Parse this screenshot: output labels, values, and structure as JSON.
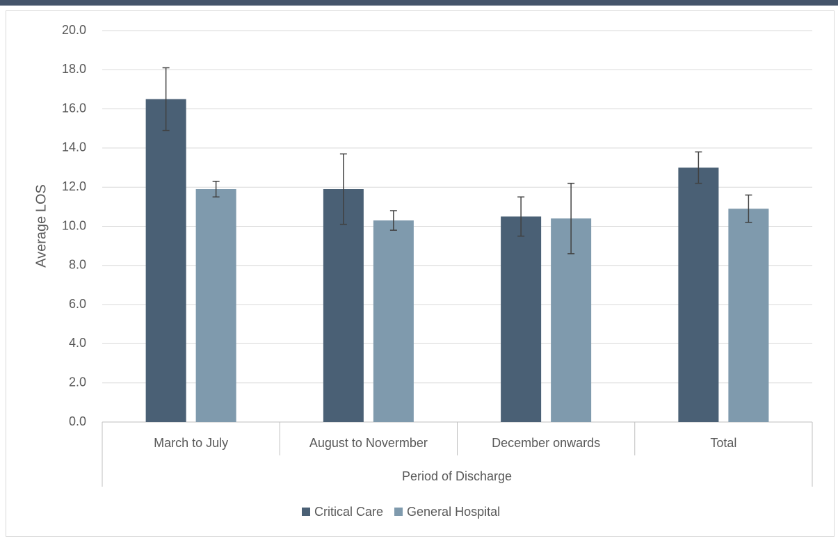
{
  "chart_data": {
    "type": "bar",
    "x_label": "Period of Discharge",
    "y_label": "Average LOS",
    "categories": [
      "March to July",
      "August to Novermber",
      "December onwards",
      "Total"
    ],
    "series": [
      {
        "name": "Critical Care",
        "color": "#4a6075",
        "values": [
          16.5,
          11.9,
          10.5,
          13.0
        ],
        "errors": [
          1.6,
          1.8,
          1.0,
          0.8
        ]
      },
      {
        "name": "General Hospital",
        "color": "#7f9aad",
        "values": [
          11.9,
          10.3,
          10.4,
          10.9
        ],
        "errors": [
          0.4,
          0.5,
          1.8,
          0.7
        ]
      }
    ],
    "ylim": [
      0,
      20
    ],
    "yticks": [
      {
        "value": 0,
        "label": "0.0"
      },
      {
        "value": 2,
        "label": "2.0"
      },
      {
        "value": 4,
        "label": "4.0"
      },
      {
        "value": 6,
        "label": "6.0"
      },
      {
        "value": 8,
        "label": "8.0"
      },
      {
        "value": 10,
        "label": "10.0"
      },
      {
        "value": 12,
        "label": "12.0"
      },
      {
        "value": 14,
        "label": "14.0"
      },
      {
        "value": 16,
        "label": "16.0"
      },
      {
        "value": 18,
        "label": "18.0"
      },
      {
        "value": 20,
        "label": "20.0"
      }
    ],
    "grid": true,
    "legend": "bottom"
  }
}
